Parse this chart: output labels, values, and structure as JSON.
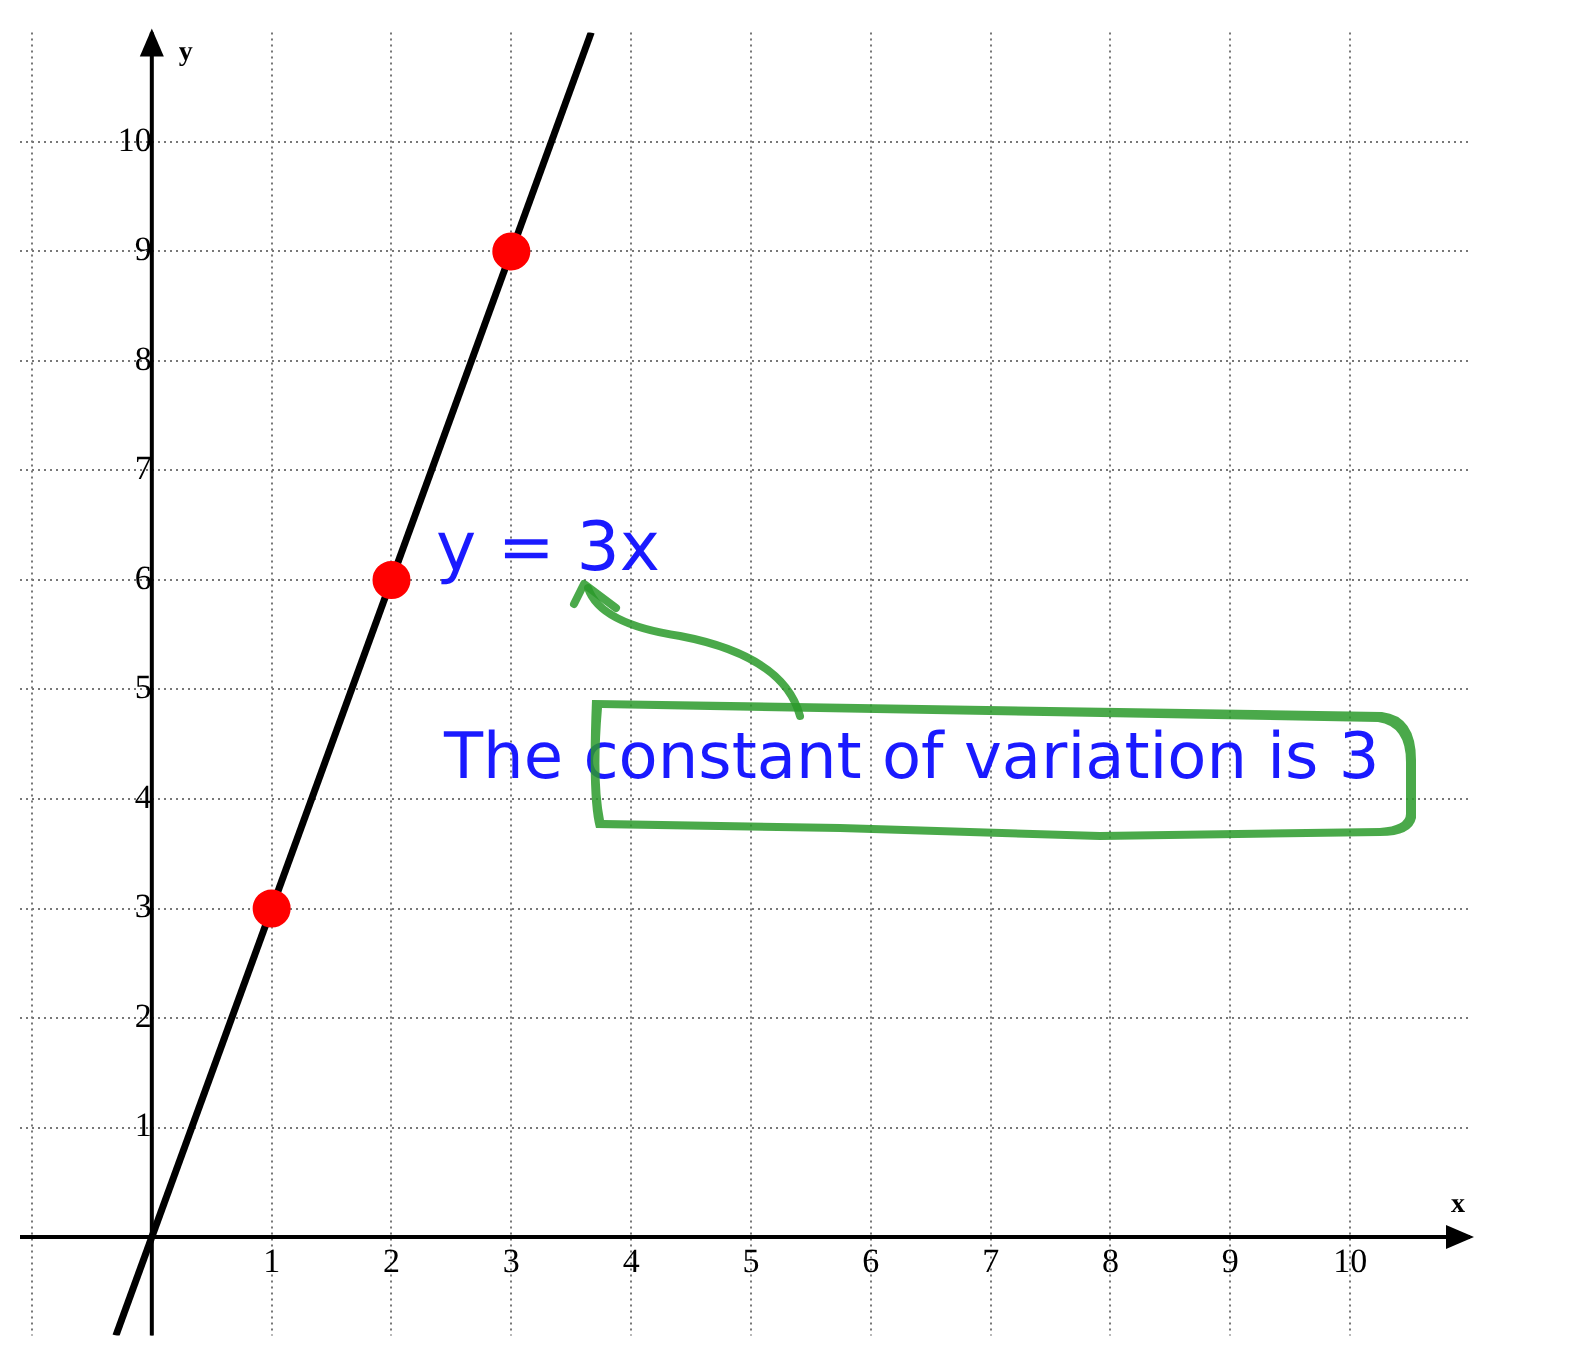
{
  "chart_data": {
    "type": "line",
    "xlabel": "x",
    "ylabel": "y",
    "xlim": [
      -1.1,
      11
    ],
    "ylim": [
      -0.9,
      11
    ],
    "xticks": [
      {
        "value": -1,
        "label": null
      },
      {
        "value": 0,
        "label": null
      },
      1,
      2,
      3,
      4,
      5,
      6,
      7,
      8,
      9,
      10
    ],
    "yticks": [
      {
        "value": 0,
        "label": null
      },
      1,
      2,
      3,
      4,
      5,
      6,
      7,
      8,
      9,
      10
    ],
    "grid": true,
    "series": [
      {
        "type": "line",
        "x": [
          -0.3,
          3.667
        ],
        "values": [
          -0.9,
          11
        ],
        "color": "#000000",
        "marker": "none"
      },
      {
        "type": "scatter",
        "x": [
          1,
          2,
          3
        ],
        "values": [
          3,
          6,
          9
        ],
        "color": "#ff0000",
        "marker": "circle"
      }
    ],
    "annotations": [
      "y = 3x",
      "The constant of variation is 3"
    ]
  }
}
